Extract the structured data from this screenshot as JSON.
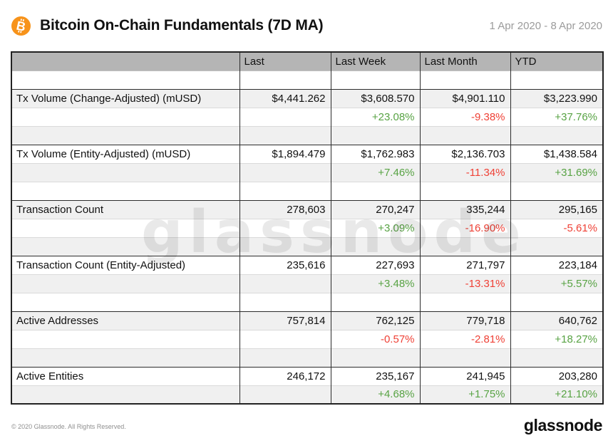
{
  "header": {
    "title": "Bitcoin On-Chain Fundamentals (7D MA)",
    "date_range": "1 Apr 2020 - 8 Apr 2020"
  },
  "chart_data": {
    "type": "table",
    "title": "Bitcoin On-Chain Fundamentals (7D MA)",
    "period": "1 Apr 2020 - 8 Apr 2020",
    "columns": [
      "",
      "Last",
      "Last Week",
      "Last Month",
      "YTD"
    ],
    "rows": [
      {
        "metric": "Tx Volume (Change-Adjusted) (mUSD)",
        "values": [
          "$4,441.262",
          "$3,608.570",
          "$4,901.110",
          "$3,223.990"
        ],
        "changes": [
          "",
          "+23.08%",
          "-9.38%",
          "+37.76%"
        ]
      },
      {
        "metric": "Tx Volume (Entity-Adjusted) (mUSD)",
        "values": [
          "$1,894.479",
          "$1,762.983",
          "$2,136.703",
          "$1,438.584"
        ],
        "changes": [
          "",
          "+7.46%",
          "-11.34%",
          "+31.69%"
        ]
      },
      {
        "metric": "Transaction Count",
        "values": [
          "278,603",
          "270,247",
          "335,244",
          "295,165"
        ],
        "changes": [
          "",
          "+3.09%",
          "-16.90%",
          "-5.61%"
        ]
      },
      {
        "metric": "Transaction Count (Entity-Adjusted)",
        "values": [
          "235,616",
          "227,693",
          "271,797",
          "223,184"
        ],
        "changes": [
          "",
          "+3.48%",
          "-13.31%",
          "+5.57%"
        ]
      },
      {
        "metric": "Active Addresses",
        "values": [
          "757,814",
          "762,125",
          "779,718",
          "640,762"
        ],
        "changes": [
          "",
          "-0.57%",
          "-2.81%",
          "+18.27%"
        ]
      },
      {
        "metric": "Active Entities",
        "values": [
          "246,172",
          "235,167",
          "241,945",
          "203,280"
        ],
        "changes": [
          "",
          "+4.68%",
          "+1.75%",
          "+21.10%"
        ]
      }
    ]
  },
  "watermark": "glassnode",
  "footer": {
    "copyright": "© 2020 Glassnode. All Rights Reserved.",
    "logo_text": "glassnode"
  },
  "colors": {
    "positive": "#58a344",
    "negative": "#ef4136",
    "bitcoin_orange": "#f7931a",
    "header_gray": "#b5b5b5",
    "stripe_gray": "#f0f0f0"
  }
}
